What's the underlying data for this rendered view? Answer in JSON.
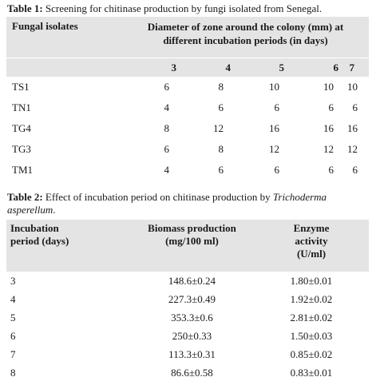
{
  "table1": {
    "caption_label": "Table 1:",
    "caption_text": " Screening for chitinase production by fungi isolated from Senegal.",
    "header_col0": "Fungal isolates",
    "header_span": "Diameter of zone around the colony (mm) at different incubation periods (in days)",
    "days": [
      "3",
      "4",
      "5",
      "6",
      "7"
    ],
    "rows": [
      {
        "isolate": "TS1",
        "values": [
          "6",
          "8",
          "10",
          "10",
          "10"
        ]
      },
      {
        "isolate": "TN1",
        "values": [
          "4",
          "6",
          "6",
          "6",
          "6"
        ]
      },
      {
        "isolate": "TG4",
        "values": [
          "8",
          "12",
          "16",
          "16",
          "16"
        ]
      },
      {
        "isolate": "TG3",
        "values": [
          "6",
          "8",
          "12",
          "12",
          "12"
        ]
      },
      {
        "isolate": "TM1",
        "values": [
          "4",
          "6",
          "6",
          "6",
          "6"
        ]
      }
    ]
  },
  "table2": {
    "caption_label": "Table 2:",
    "caption_text": " Effect of incubation period on chitinase production by ",
    "caption_species": "Trichoderma asperellum",
    "caption_end": ".",
    "headers": {
      "col0": "Incubation period (days)",
      "col1": "Biomass production (mg/100 ml)",
      "col2": "Enzyme activity (U/ml)"
    },
    "rows": [
      {
        "period": "3",
        "biomass": "148.6±0.24",
        "enzyme": "1.80±0.01"
      },
      {
        "period": "4",
        "biomass": "227.3±0.49",
        "enzyme": "1.92±0.02"
      },
      {
        "period": "5",
        "biomass": "353.3±0.6",
        "enzyme": "2.81±0.02"
      },
      {
        "period": "6",
        "biomass": "250±0.33",
        "enzyme": "1.50±0.03"
      },
      {
        "period": "7",
        "biomass": "113.3±0.31",
        "enzyme": "0.85±0.02"
      },
      {
        "period": "8",
        "biomass": "86.6±0.58",
        "enzyme": "0.83±0.01"
      }
    ]
  }
}
